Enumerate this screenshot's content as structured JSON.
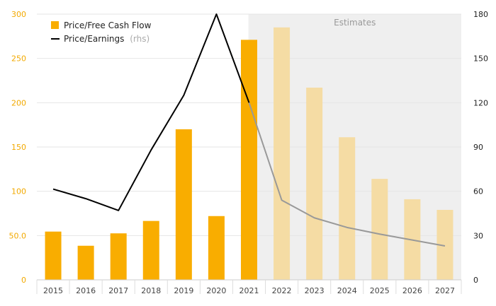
{
  "chart_data": {
    "type": "bar",
    "categories": [
      "2015",
      "2016",
      "2017",
      "2018",
      "2019",
      "2020",
      "2021",
      "2022",
      "2023",
      "2024",
      "2025",
      "2026",
      "2027"
    ],
    "series": [
      {
        "name": "Price/Free Cash Flow",
        "type": "bar",
        "axis": "left",
        "color": "#f9ad00",
        "estimate_color": "#f5dca4",
        "values": [
          54.5,
          38.5,
          52.5,
          66.5,
          170,
          72,
          271,
          285,
          217,
          161,
          114,
          91,
          79
        ]
      },
      {
        "name": "Price/Earnings",
        "name_suffix": "(rhs)",
        "type": "line",
        "axis": "right",
        "color": "#000000",
        "estimate_color": "#999999",
        "values": [
          61.5,
          55,
          47,
          88,
          125,
          180,
          120,
          54,
          42,
          35.5,
          31,
          27,
          23
        ]
      }
    ],
    "estimates": {
      "label": "Estimates",
      "start_category": "2022"
    },
    "y_left": {
      "lim": [
        0,
        300
      ],
      "ticks": [
        0,
        50,
        100,
        150,
        200,
        250,
        300
      ],
      "tick_labels": [
        "0",
        "50.0",
        "100",
        "150",
        "200",
        "250",
        "300"
      ]
    },
    "y_right": {
      "lim": [
        0,
        180
      ],
      "ticks": [
        0,
        30,
        60,
        90,
        120,
        150,
        180
      ],
      "tick_labels": [
        "0",
        "30",
        "60",
        "90",
        "120",
        "150",
        "180"
      ]
    },
    "grid": true,
    "legend": "top-left"
  },
  "colors": {
    "bar": "#f9ad00",
    "bar_estimate": "#f5dca4",
    "line": "#000000",
    "line_estimate": "#999999",
    "estimate_bg": "#efefef",
    "grid": "#e6e6e6",
    "left_axis_text": "#f2a900"
  }
}
